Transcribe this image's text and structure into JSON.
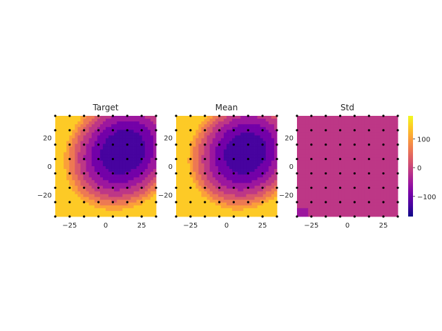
{
  "chart_data": [
    {
      "type": "heatmap",
      "title": "Target",
      "x_range": [
        -35,
        35
      ],
      "y_range": [
        -35,
        35
      ],
      "xticks": [
        "−25",
        "0",
        "25"
      ],
      "yticks": [
        "20",
        "0",
        "−20"
      ],
      "field": {
        "kind": "bowl",
        "center": [
          12,
          10
        ],
        "min": -170,
        "slope": 0.19,
        "tilt_x": 0.06
      },
      "grid_points": {
        "x": [
          -35,
          -25,
          -15,
          -5,
          5,
          15,
          25,
          35
        ],
        "y": [
          -35,
          -25,
          -15,
          -5,
          5,
          15,
          25,
          35
        ]
      }
    },
    {
      "type": "heatmap",
      "title": "Mean",
      "x_range": [
        -35,
        35
      ],
      "y_range": [
        -35,
        35
      ],
      "xticks": [
        "−25",
        "0",
        "25"
      ],
      "yticks": [
        "20",
        "0",
        "−20"
      ],
      "field": {
        "kind": "bowl",
        "center": [
          13,
          9
        ],
        "min": -168,
        "slope": 0.2,
        "tilt_x": 0.05
      },
      "grid_points": {
        "x": [
          -35,
          -25,
          -15,
          -5,
          5,
          15,
          25,
          35
        ],
        "y": [
          -35,
          -25,
          -15,
          -5,
          5,
          15,
          25,
          35
        ]
      }
    },
    {
      "type": "heatmap",
      "title": "Std",
      "x_range": [
        -35,
        35
      ],
      "y_range": [
        -35,
        35
      ],
      "xticks": [
        "−25",
        "0",
        "25"
      ],
      "yticks": [
        "20",
        "0",
        "−20"
      ],
      "field": {
        "kind": "flat",
        "value": 0,
        "corner_value": -60
      },
      "grid_points": {
        "x": [
          -35,
          -25,
          -15,
          -5,
          5,
          15,
          25,
          35
        ],
        "y": [
          -35,
          -25,
          -15,
          -5,
          5,
          15,
          25,
          35
        ]
      }
    }
  ],
  "colorbar": {
    "colormap": "plasma",
    "range": [
      -170,
      180
    ],
    "ticks": [
      {
        "value": 100,
        "label": "100"
      },
      {
        "value": 0,
        "label": "0"
      },
      {
        "value": -100,
        "label": "−100"
      }
    ]
  },
  "colors": {
    "plasma": [
      "#0d0887",
      "#47039f",
      "#7301a8",
      "#9c179e",
      "#bd3786",
      "#d8576b",
      "#ed7953",
      "#fb9f3a",
      "#fdca26",
      "#f0f921"
    ],
    "point": "#000000"
  }
}
